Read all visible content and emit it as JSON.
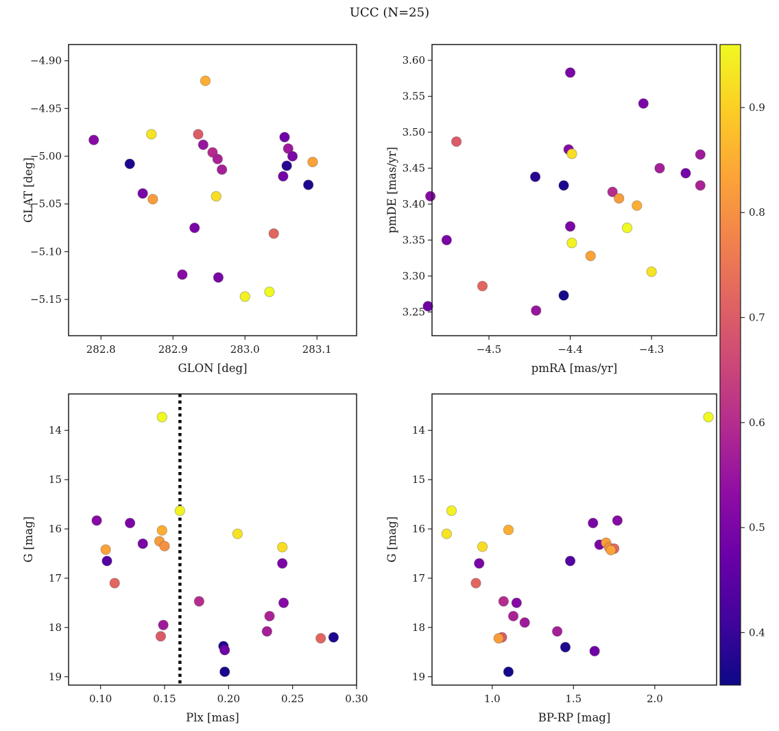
{
  "figure": {
    "title": "UCC (N=25)"
  },
  "colorbar": {
    "vmin": 0.35,
    "vmax": 0.96,
    "ticks": [
      0.9,
      0.8,
      0.7,
      0.6,
      0.5,
      0.4
    ],
    "tick_labels": [
      "0.9",
      "0.8",
      "0.7",
      "0.6",
      "0.5",
      "0.4"
    ],
    "colormap": "plasma"
  },
  "chart_data": [
    {
      "id": "glon-glat",
      "type": "scatter",
      "xlabel": "GLON [deg]",
      "ylabel": "GLAT [deg]",
      "xlim": [
        282.755,
        283.155
      ],
      "ylim": [
        -5.188,
        -4.883
      ],
      "invert_y": false,
      "xticks": [
        282.8,
        282.9,
        283.0,
        283.1
      ],
      "xtick_labels": [
        "282.8",
        "282.9",
        "283.0",
        "283.1"
      ],
      "yticks": [
        -4.9,
        -4.95,
        -5.0,
        -5.05,
        -5.1,
        -5.15
      ],
      "ytick_labels": [
        "−4.90",
        "−4.95",
        "−5.00",
        "−5.05",
        "−5.10",
        "−5.15"
      ],
      "points": [
        [
          282.79,
          -4.983,
          0.52
        ],
        [
          282.87,
          -4.977,
          0.93
        ],
        [
          282.84,
          -5.008,
          0.37
        ],
        [
          282.858,
          -5.039,
          0.5
        ],
        [
          282.872,
          -5.045,
          0.82
        ],
        [
          282.945,
          -4.921,
          0.85
        ],
        [
          282.935,
          -4.977,
          0.7
        ],
        [
          282.942,
          -4.988,
          0.55
        ],
        [
          282.955,
          -4.996,
          0.6
        ],
        [
          282.962,
          -5.003,
          0.58
        ],
        [
          282.968,
          -5.014,
          0.57
        ],
        [
          282.96,
          -5.042,
          0.92
        ],
        [
          282.93,
          -5.075,
          0.5
        ],
        [
          282.913,
          -5.124,
          0.52
        ],
        [
          282.963,
          -5.127,
          0.5
        ],
        [
          283.0,
          -5.147,
          0.95
        ],
        [
          283.034,
          -5.142,
          0.97
        ],
        [
          283.055,
          -4.98,
          0.48
        ],
        [
          283.06,
          -4.992,
          0.56
        ],
        [
          283.066,
          -5.0,
          0.5
        ],
        [
          283.058,
          -5.01,
          0.38
        ],
        [
          283.053,
          -5.021,
          0.49
        ],
        [
          283.088,
          -5.03,
          0.37
        ],
        [
          283.094,
          -5.006,
          0.83
        ],
        [
          283.04,
          -5.081,
          0.72
        ]
      ]
    },
    {
      "id": "pm",
      "type": "scatter",
      "xlabel": "pmRA [mas/yr]",
      "ylabel": "pmDE [mas/yr]",
      "xlim": [
        -4.57,
        -4.22
      ],
      "ylim": [
        3.217,
        3.622
      ],
      "invert_y": false,
      "xticks": [
        -4.5,
        -4.4,
        -4.3
      ],
      "xtick_labels": [
        "−4.5",
        "−4.4",
        "−4.3"
      ],
      "yticks": [
        3.25,
        3.3,
        3.35,
        3.4,
        3.45,
        3.5,
        3.55,
        3.6
      ],
      "ytick_labels": [
        "3.25",
        "3.30",
        "3.35",
        "3.40",
        "3.45",
        "3.50",
        "3.55",
        "3.60"
      ],
      "points": [
        [
          -4.4,
          3.583,
          0.5
        ],
        [
          -4.31,
          3.54,
          0.5
        ],
        [
          -4.54,
          3.487,
          0.7
        ],
        [
          -4.402,
          3.476,
          0.52
        ],
        [
          -4.398,
          3.47,
          0.92
        ],
        [
          -4.24,
          3.469,
          0.56
        ],
        [
          -4.29,
          3.45,
          0.57
        ],
        [
          -4.258,
          3.443,
          0.49
        ],
        [
          -4.443,
          3.438,
          0.38
        ],
        [
          -4.408,
          3.426,
          0.37
        ],
        [
          -4.24,
          3.426,
          0.58
        ],
        [
          -4.572,
          3.411,
          0.52
        ],
        [
          -4.348,
          3.417,
          0.6
        ],
        [
          -4.34,
          3.408,
          0.82
        ],
        [
          -4.318,
          3.398,
          0.85
        ],
        [
          -4.4,
          3.369,
          0.5
        ],
        [
          -4.33,
          3.367,
          0.97
        ],
        [
          -4.552,
          3.35,
          0.5
        ],
        [
          -4.398,
          3.346,
          0.95
        ],
        [
          -4.375,
          3.328,
          0.83
        ],
        [
          -4.3,
          3.306,
          0.93
        ],
        [
          -4.508,
          3.286,
          0.72
        ],
        [
          -4.408,
          3.273,
          0.36
        ],
        [
          -4.575,
          3.258,
          0.48
        ],
        [
          -4.442,
          3.252,
          0.55
        ]
      ]
    },
    {
      "id": "plx-g",
      "type": "scatter",
      "xlabel": "Plx [mas]",
      "ylabel": "G [mag]",
      "xlim": [
        0.075,
        0.3
      ],
      "ylim": [
        13.26,
        19.17
      ],
      "invert_y": true,
      "vline": 0.162,
      "vline_style": "dotted",
      "xticks": [
        0.1,
        0.15,
        0.2,
        0.25,
        0.3
      ],
      "xtick_labels": [
        "0.10",
        "0.15",
        "0.20",
        "0.25",
        "0.30"
      ],
      "yticks": [
        14,
        15,
        16,
        17,
        18,
        19
      ],
      "ytick_labels": [
        "14",
        "15",
        "16",
        "17",
        "18",
        "19"
      ],
      "points": [
        [
          0.148,
          13.73,
          0.97
        ],
        [
          0.162,
          15.63,
          0.95
        ],
        [
          0.097,
          15.83,
          0.52
        ],
        [
          0.123,
          15.88,
          0.5
        ],
        [
          0.148,
          16.03,
          0.85
        ],
        [
          0.207,
          16.1,
          0.93
        ],
        [
          0.133,
          16.3,
          0.5
        ],
        [
          0.146,
          16.25,
          0.82
        ],
        [
          0.15,
          16.35,
          0.8
        ],
        [
          0.104,
          16.42,
          0.83
        ],
        [
          0.105,
          16.65,
          0.44
        ],
        [
          0.242,
          16.37,
          0.92
        ],
        [
          0.242,
          16.7,
          0.5
        ],
        [
          0.111,
          17.1,
          0.72
        ],
        [
          0.177,
          17.47,
          0.6
        ],
        [
          0.243,
          17.5,
          0.52
        ],
        [
          0.232,
          17.77,
          0.58
        ],
        [
          0.149,
          17.95,
          0.56
        ],
        [
          0.147,
          18.18,
          0.7
        ],
        [
          0.23,
          18.08,
          0.57
        ],
        [
          0.196,
          18.38,
          0.37
        ],
        [
          0.197,
          18.46,
          0.48
        ],
        [
          0.272,
          18.22,
          0.72
        ],
        [
          0.282,
          18.2,
          0.37
        ],
        [
          0.197,
          18.9,
          0.36
        ]
      ]
    },
    {
      "id": "cmd",
      "type": "scatter",
      "xlabel": "BP-RP [mag]",
      "ylabel": "G [mag]",
      "xlim": [
        0.63,
        2.38
      ],
      "ylim": [
        13.26,
        19.17
      ],
      "invert_y": true,
      "xticks": [
        1.0,
        1.5,
        2.0
      ],
      "xtick_labels": [
        "1.0",
        "1.5",
        "2.0"
      ],
      "yticks": [
        14,
        15,
        16,
        17,
        18,
        19
      ],
      "ytick_labels": [
        "14",
        "15",
        "16",
        "17",
        "18",
        "19"
      ],
      "points": [
        [
          2.33,
          13.73,
          0.97
        ],
        [
          0.75,
          15.63,
          0.95
        ],
        [
          1.77,
          15.83,
          0.52
        ],
        [
          1.62,
          15.88,
          0.5
        ],
        [
          1.1,
          16.02,
          0.85
        ],
        [
          0.72,
          16.1,
          0.93
        ],
        [
          1.66,
          16.32,
          0.5
        ],
        [
          1.7,
          16.28,
          0.82
        ],
        [
          1.72,
          16.38,
          0.8
        ],
        [
          1.75,
          16.4,
          0.72
        ],
        [
          1.73,
          16.43,
          0.83
        ],
        [
          0.94,
          16.36,
          0.92
        ],
        [
          1.48,
          16.65,
          0.44
        ],
        [
          0.92,
          16.7,
          0.5
        ],
        [
          0.9,
          17.1,
          0.72
        ],
        [
          1.07,
          17.47,
          0.6
        ],
        [
          1.15,
          17.5,
          0.52
        ],
        [
          1.13,
          17.77,
          0.58
        ],
        [
          1.2,
          17.9,
          0.56
        ],
        [
          1.06,
          18.2,
          0.7
        ],
        [
          1.04,
          18.22,
          0.82
        ],
        [
          1.4,
          18.08,
          0.57
        ],
        [
          1.45,
          18.4,
          0.37
        ],
        [
          1.63,
          18.48,
          0.48
        ],
        [
          1.1,
          18.9,
          0.36
        ]
      ]
    }
  ]
}
